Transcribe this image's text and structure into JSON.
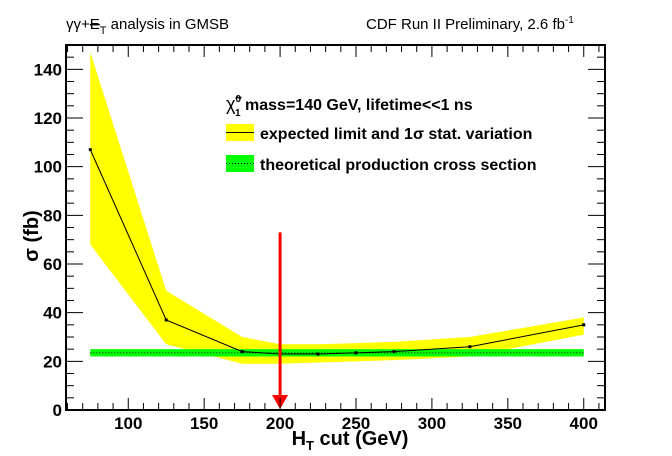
{
  "header": {
    "left_title_prefix": "γγ+",
    "left_title_met": "E",
    "left_title_met_sub": "T",
    "left_title_suffix": " analysis in GMSB",
    "right_title": "CDF Run II Preliminary, 2.6 fb",
    "right_title_sup": "-1"
  },
  "chart_data": {
    "type": "line",
    "title": "γγ+MET analysis in GMSB — CDF Run II Preliminary, 2.6 fb^-1",
    "xlabel": "H_T cut (GeV)",
    "xlabel_main": "H",
    "xlabel_sub": "T",
    "xlabel_rest": " cut (GeV)",
    "ylabel": "σ (fb)",
    "xlim": [
      59,
      414
    ],
    "ylim": [
      0,
      150
    ],
    "x_ticks": [
      100,
      150,
      200,
      250,
      300,
      350,
      400
    ],
    "y_ticks": [
      0,
      20,
      40,
      60,
      80,
      100,
      120,
      140
    ],
    "grid": false,
    "legend_position": "top-right",
    "legend": {
      "header_symbol": "χ̃",
      "header_sup": "0",
      "header_sub": "1",
      "header_text": " mass=140 GeV, lifetime<<1 ns",
      "entries": [
        {
          "label": "expected limit and 1σ stat.  variation",
          "swatch": "#ffff00",
          "line": "solid"
        },
        {
          "label": "theoretical production cross section",
          "swatch": "#00ff00",
          "line": "dotted"
        }
      ]
    },
    "series": [
      {
        "name": "expected limit",
        "color": "#000000",
        "x": [
          75,
          125,
          175,
          200,
          225,
          250,
          275,
          325,
          400
        ],
        "values": [
          107,
          37,
          24,
          23,
          23,
          23.5,
          24,
          26,
          35
        ]
      }
    ],
    "band": {
      "name": "1σ stat. variation",
      "color": "#ffff00",
      "x": [
        75,
        125,
        175,
        200,
        225,
        250,
        275,
        325,
        400
      ],
      "upper": [
        147,
        49,
        30,
        27,
        27,
        27.5,
        28,
        30,
        38
      ],
      "lower": [
        68,
        27,
        19,
        19,
        19.5,
        20,
        20.5,
        22,
        31
      ]
    },
    "theory_band": {
      "name": "theoretical production cross section",
      "color": "#00ff00",
      "x_range": [
        75,
        400
      ],
      "center": 23.5,
      "lower": 22,
      "upper": 25
    },
    "annotation": {
      "type": "arrow",
      "color": "#ff0000",
      "x": 200,
      "from_y": 73,
      "to_y": 0,
      "meaning": "selected H_T cut"
    }
  }
}
